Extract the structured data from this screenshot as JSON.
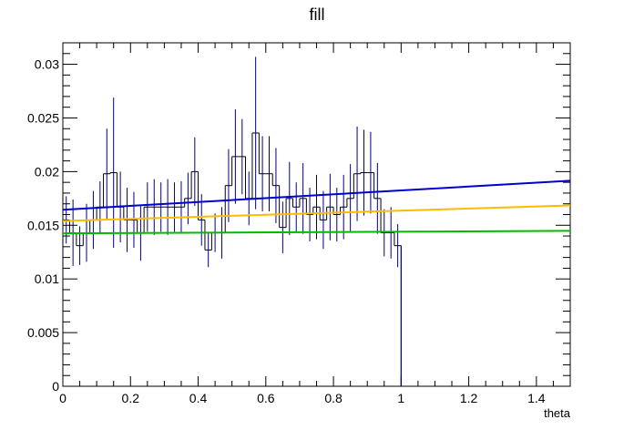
{
  "chart_data": {
    "type": "histogram",
    "title": "fill",
    "xlabel": "theta",
    "ylabel": "",
    "xlim": [
      0,
      1.5
    ],
    "ylim": [
      0,
      0.032
    ],
    "grid": false,
    "legend": "none",
    "x_ticks": [
      0,
      0.2,
      0.4,
      0.6,
      0.8,
      1,
      1.2,
      1.4
    ],
    "x_tick_labels": [
      "0",
      "0.2",
      "0.4",
      "0.6",
      "0.8",
      "1",
      "1.2",
      "1.4"
    ],
    "y_ticks": [
      0,
      0.005,
      0.01,
      0.015,
      0.02,
      0.025,
      0.03
    ],
    "y_tick_labels": [
      "0",
      "0.005",
      "0.01",
      "0.015",
      "0.02",
      "0.025",
      "0.03"
    ],
    "histogram": {
      "color": "#000000",
      "error_color": "#00007f",
      "bin_edges": [
        0,
        0.02,
        0.04,
        0.06,
        0.08,
        0.1,
        0.12,
        0.14,
        0.16,
        0.18,
        0.2,
        0.22,
        0.24,
        0.26,
        0.28,
        0.3,
        0.32,
        0.34,
        0.36,
        0.38,
        0.4,
        0.42,
        0.44,
        0.46,
        0.48,
        0.5,
        0.52,
        0.54,
        0.56,
        0.58,
        0.6,
        0.62,
        0.64,
        0.66,
        0.68,
        0.7,
        0.72,
        0.74,
        0.76,
        0.78,
        0.8,
        0.82,
        0.84,
        0.86,
        0.88,
        0.9,
        0.92,
        0.94,
        0.96,
        0.98,
        1.0,
        1.02
      ],
      "values": [
        0.0155,
        0.0143,
        0.0131,
        0.0143,
        0.0155,
        0.0167,
        0.0198,
        0.0199,
        0.0167,
        0.0155,
        0.0155,
        0.0143,
        0.0167,
        0.0167,
        0.0167,
        0.0167,
        0.0167,
        0.0167,
        0.0175,
        0.02,
        0.0155,
        0.0127,
        0.0143,
        0.0143,
        0.0187,
        0.0214,
        0.0214,
        0.0175,
        0.0236,
        0.0198,
        0.0198,
        0.0187,
        0.0148,
        0.0175,
        0.0167,
        0.0175,
        0.016,
        0.0167,
        0.0155,
        0.0167,
        0.016,
        0.0167,
        0.0175,
        0.0198,
        0.0199,
        0.0199,
        0.0175,
        0.0143,
        0.0143,
        0.0131,
        0.0
      ],
      "errors": [
        0.0022,
        0.0031,
        0.0018,
        0.0027,
        0.0027,
        0.0024,
        0.0042,
        0.007,
        0.0033,
        0.003,
        0.0026,
        0.0026,
        0.0023,
        0.0026,
        0.0023,
        0.0026,
        0.0023,
        0.0024,
        0.0024,
        0.0032,
        0.0024,
        0.0016,
        0.0018,
        0.0024,
        0.0034,
        0.0044,
        0.0035,
        0.0025,
        0.0071,
        0.0035,
        0.0035,
        0.0035,
        0.0024,
        0.0034,
        0.0023,
        0.0033,
        0.0025,
        0.003,
        0.0027,
        0.0031,
        0.0025,
        0.003,
        0.0032,
        0.0044,
        0.004,
        0.0038,
        0.0033,
        0.0022,
        0.0024,
        0.002,
        0.0
      ]
    },
    "series": [
      {
        "color": "#0000cc",
        "x": [
          0,
          1.5
        ],
        "values": [
          0.01645,
          0.01915
        ]
      },
      {
        "color": "#ffbb00",
        "x": [
          0,
          1.5
        ],
        "values": [
          0.0154,
          0.01685
        ]
      },
      {
        "color": "#00bb00",
        "x": [
          0,
          1.5
        ],
        "values": [
          0.01425,
          0.01448
        ]
      }
    ]
  }
}
